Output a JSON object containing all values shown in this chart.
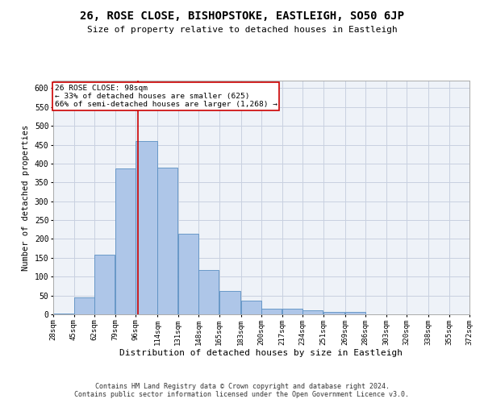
{
  "title": "26, ROSE CLOSE, BISHOPSTOKE, EASTLEIGH, SO50 6JP",
  "subtitle": "Size of property relative to detached houses in Eastleigh",
  "xlabel": "Distribution of detached houses by size in Eastleigh",
  "ylabel": "Number of detached properties",
  "footer_line1": "Contains HM Land Registry data © Crown copyright and database right 2024.",
  "footer_line2": "Contains public sector information licensed under the Open Government Licence v3.0.",
  "annotation_line1": "26 ROSE CLOSE: 98sqm",
  "annotation_line2": "← 33% of detached houses are smaller (625)",
  "annotation_line3": "66% of semi-detached houses are larger (1,268) →",
  "bar_edges": [
    28,
    45,
    62,
    79,
    96,
    114,
    131,
    148,
    165,
    183,
    200,
    217,
    234,
    251,
    269,
    286,
    303,
    320,
    338,
    355,
    372
  ],
  "bar_values": [
    2,
    44,
    158,
    387,
    460,
    390,
    213,
    118,
    63,
    36,
    14,
    15,
    10,
    7,
    6,
    0,
    1,
    0,
    0,
    1
  ],
  "bar_color": "#aec6e8",
  "bar_edge_color": "#5a8fc2",
  "vline_x": 98,
  "vline_color": "#cc0000",
  "grid_color": "#c8d0e0",
  "bg_color": "#eef2f8",
  "yticks": [
    0,
    50,
    100,
    150,
    200,
    250,
    300,
    350,
    400,
    450,
    500,
    550,
    600
  ],
  "annotation_box_color": "#cc0000"
}
